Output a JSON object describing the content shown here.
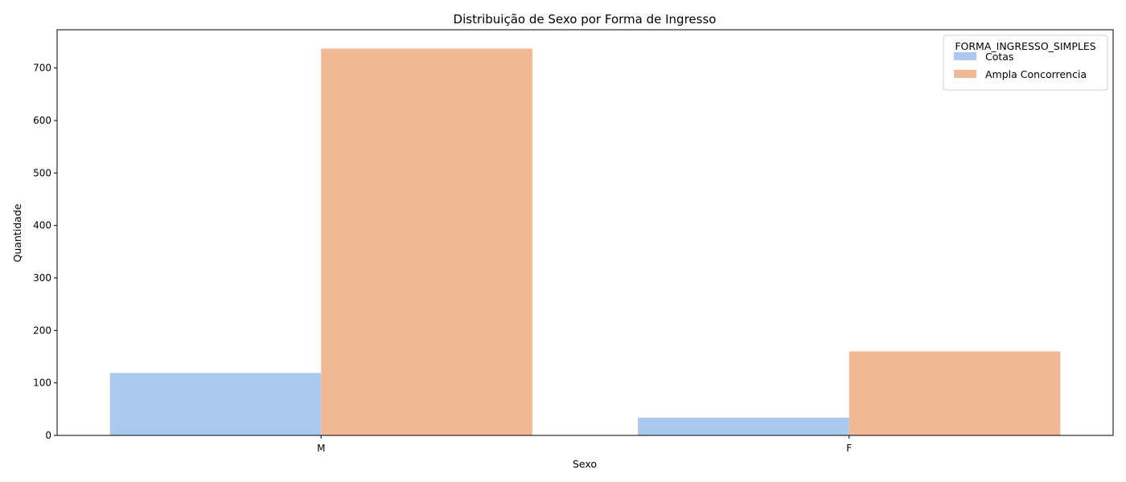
{
  "chart_data": {
    "type": "bar",
    "title": "Distribuição de Sexo por Forma de Ingresso",
    "xlabel": "Sexo",
    "ylabel": "Quantidade",
    "categories": [
      "M",
      "F"
    ],
    "ylim": [
      0,
      773
    ],
    "yticks": [
      0,
      100,
      200,
      300,
      400,
      500,
      600,
      700
    ],
    "grid": false,
    "legend": {
      "title": "FORMA_INGRESSO_SIMPLES",
      "placement": "top-right"
    },
    "series": [
      {
        "name": "Cotas",
        "color": "#abc9ef",
        "values": [
          119,
          34
        ]
      },
      {
        "name": "Ampla Concorrencia",
        "color": "#f0b894",
        "values": [
          737,
          160
        ]
      }
    ]
  }
}
